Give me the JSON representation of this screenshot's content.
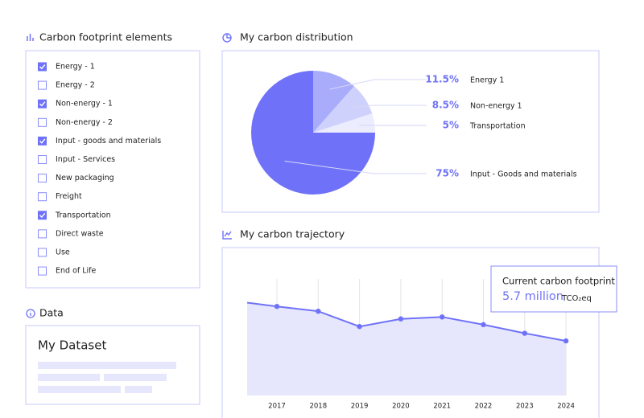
{
  "elements_panel": {
    "title": "Carbon footprint elements",
    "items": [
      {
        "label": "Energy - 1",
        "checked": true
      },
      {
        "label": "Energy - 2",
        "checked": false
      },
      {
        "label": "Non-energy - 1",
        "checked": true
      },
      {
        "label": "Non-energy - 2",
        "checked": false
      },
      {
        "label": "Input - goods and materials",
        "checked": true
      },
      {
        "label": "Input - Services",
        "checked": false
      },
      {
        "label": "New packaging",
        "checked": false
      },
      {
        "label": "Freight",
        "checked": false
      },
      {
        "label": "Transportation",
        "checked": true
      },
      {
        "label": "Direct waste",
        "checked": false
      },
      {
        "label": "Use",
        "checked": false
      },
      {
        "label": "End of Life",
        "checked": false
      }
    ]
  },
  "data_panel": {
    "title": "Data",
    "dataset": "My Dataset"
  },
  "chart_data": [
    {
      "type": "pie",
      "title": "My carbon distribution",
      "categories": [
        "Energy 1",
        "Non-energy 1",
        "Transportation",
        "Input - Goods and materials"
      ],
      "values": [
        11.5,
        8.5,
        5,
        75
      ],
      "value_labels": [
        "11.5%",
        "8.5%",
        "5%",
        "75%"
      ],
      "colors": [
        "#a9acfb",
        "#cfd1fd",
        "#ebecfe",
        "#6f72f8"
      ]
    },
    {
      "type": "area",
      "title": "My carbon trajectory",
      "x": [
        null,
        "2017",
        "2018",
        "2019",
        "2020",
        "2021",
        "2022",
        "2023",
        "2024"
      ],
      "values": [
        9.7,
        9.3,
        8.8,
        7.2,
        8.0,
        8.2,
        7.4,
        6.5,
        5.7
      ],
      "ylim": [
        0,
        13.6
      ],
      "color": "#6f72f8",
      "fill": "#e6e7fd",
      "callout": {
        "title": "Current carbon footprint",
        "value": "5.7 million",
        "unit": "TCO₂eq"
      }
    }
  ]
}
